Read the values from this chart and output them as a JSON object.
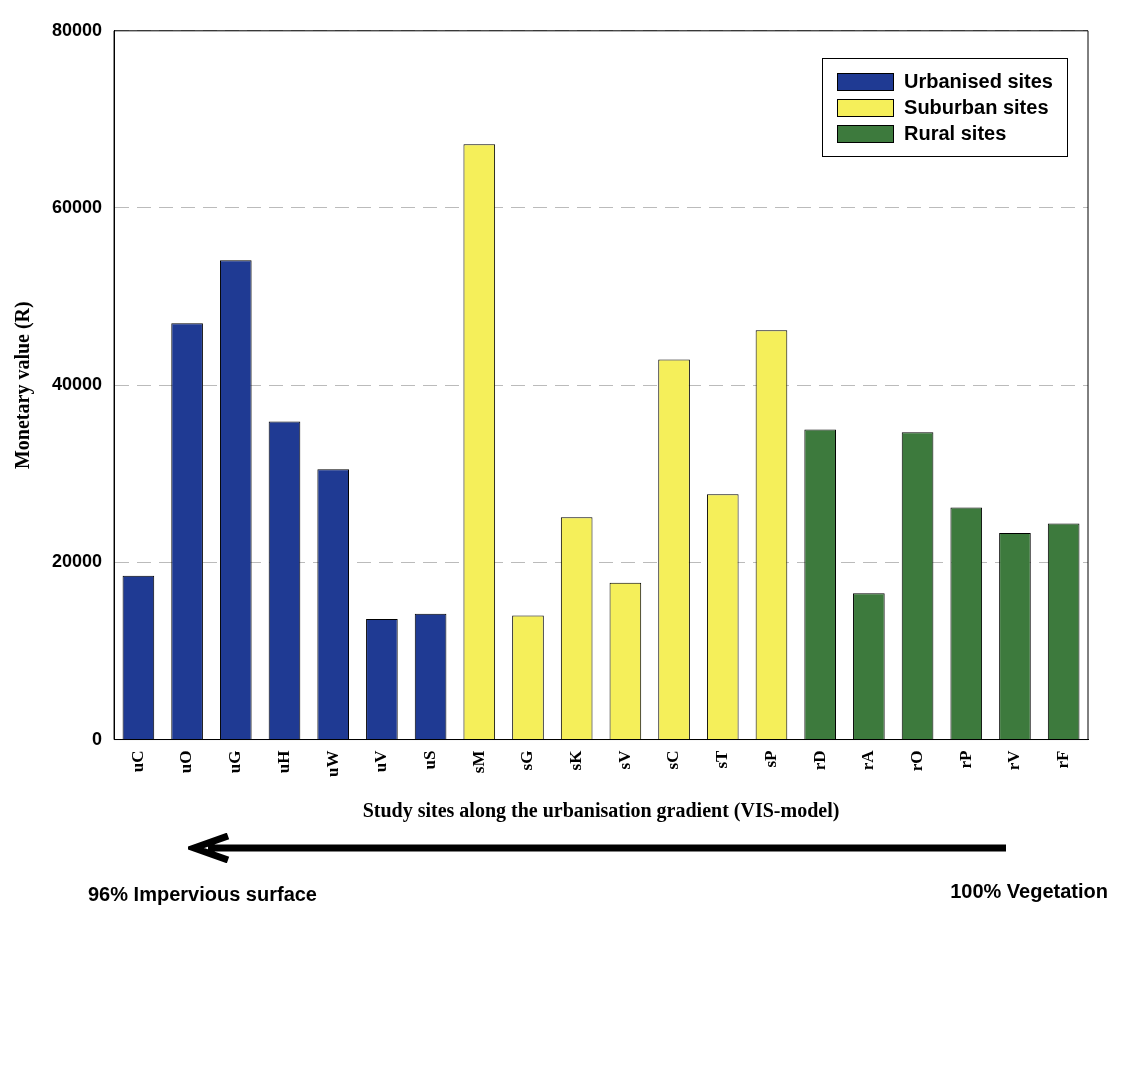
{
  "chart_data": {
    "type": "bar",
    "xlabel": "Study sites along the urbanisation gradient (VIS-model)",
    "ylabel": "Monetary value (R)",
    "categories": [
      "uC",
      "uO",
      "uG",
      "uH",
      "uW",
      "uV",
      "uS",
      "sM",
      "sG",
      "sK",
      "sV",
      "sC",
      "sT",
      "sP",
      "rD",
      "rA",
      "rO",
      "rP",
      "rV",
      "rF"
    ],
    "series": [
      {
        "name": "Urbanised sites",
        "color": "#1f3a93",
        "values": [
          18500,
          47000,
          54100,
          35900,
          30500,
          13600,
          14200,
          null,
          null,
          null,
          null,
          null,
          null,
          null,
          null,
          null,
          null,
          null,
          null,
          null
        ]
      },
      {
        "name": "Suburban sites",
        "color": "#f5ef5a",
        "values": [
          null,
          null,
          null,
          null,
          null,
          null,
          null,
          67200,
          14000,
          25100,
          17700,
          42900,
          27700,
          46200,
          null,
          null,
          null,
          null,
          null,
          null
        ]
      },
      {
        "name": "Rural sites",
        "color": "#3d7a3d",
        "values": [
          null,
          null,
          null,
          null,
          null,
          null,
          null,
          null,
          null,
          null,
          null,
          null,
          null,
          null,
          35000,
          16500,
          34700,
          26200,
          23300,
          24400
        ]
      }
    ],
    "ylim": [
      0,
      80000
    ],
    "yticks": [
      0,
      20000,
      40000,
      60000,
      80000
    ],
    "grid": "y",
    "legend": "top right",
    "annotations": [
      "96% Impervious surface",
      "100% Vegetation"
    ]
  }
}
